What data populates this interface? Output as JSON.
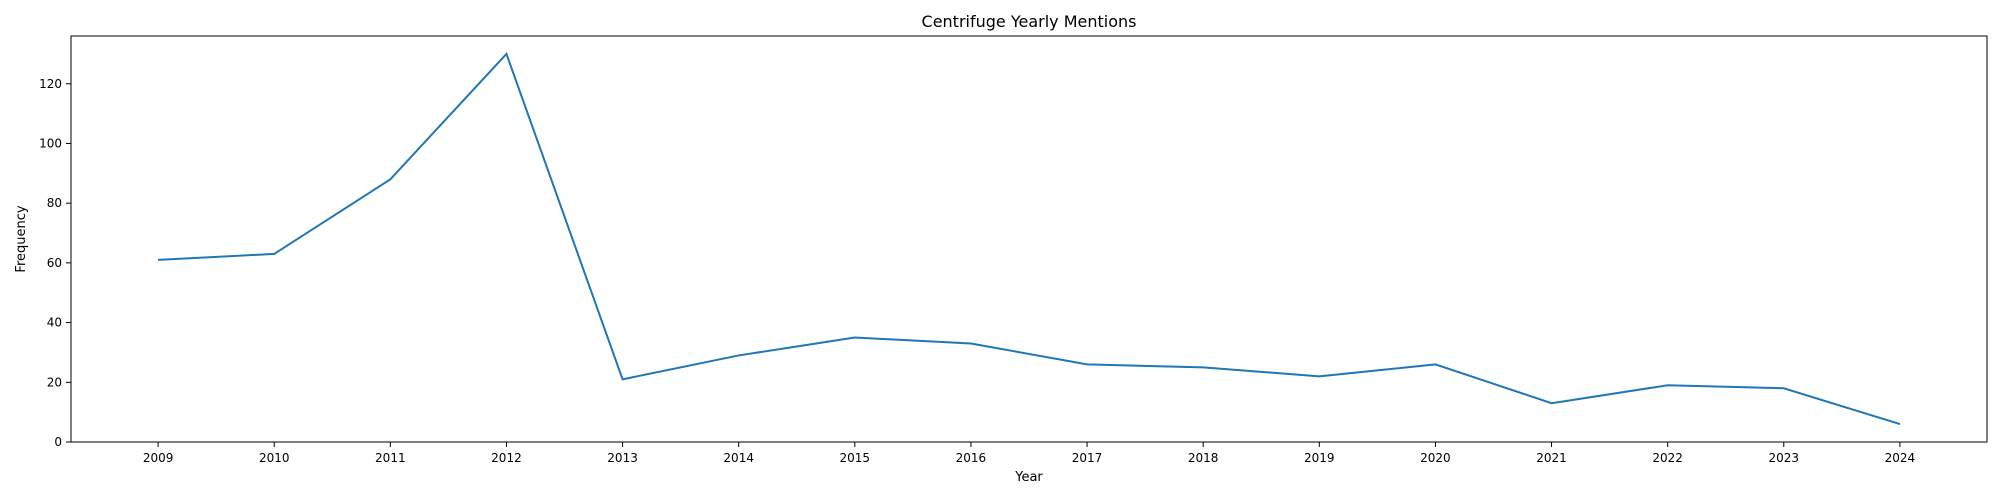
{
  "chart_data": {
    "type": "line",
    "title": "Centrifuge Yearly Mentions",
    "xlabel": "Year",
    "ylabel": "Frequency",
    "x": [
      2009,
      2010,
      2011,
      2012,
      2013,
      2014,
      2015,
      2016,
      2017,
      2018,
      2019,
      2020,
      2021,
      2022,
      2023,
      2024
    ],
    "series": [
      {
        "values": [
          61,
          63,
          88,
          130,
          21,
          29,
          35,
          33,
          26,
          25,
          22,
          26,
          13,
          19,
          18,
          6
        ],
        "color": "#1f77b4"
      }
    ],
    "ylim": [
      0,
      136
    ],
    "yticks": [
      0,
      20,
      40,
      60,
      80,
      100,
      120
    ],
    "grid": false,
    "legend": "none"
  }
}
